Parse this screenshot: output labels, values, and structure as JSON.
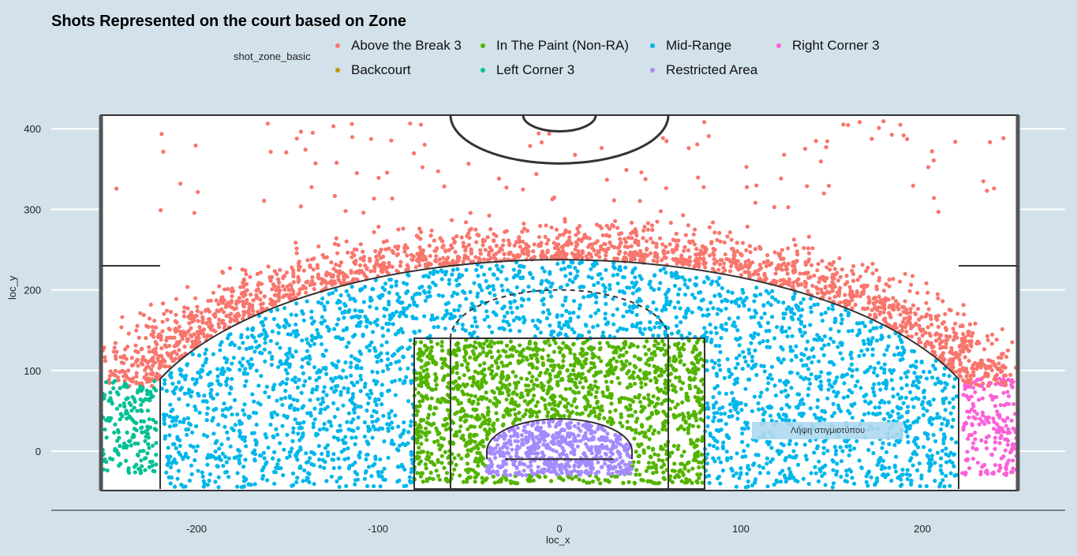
{
  "chart_data": {
    "type": "scatter",
    "title": "Shots Represented on the court based on Zone",
    "xlabel": "loc_x",
    "ylabel": "loc_y",
    "xlim": [
      -280,
      280
    ],
    "ylim": [
      -70,
      420
    ],
    "x_ticks": [
      -200,
      -100,
      0,
      100,
      200
    ],
    "y_ticks": [
      0,
      100,
      200,
      300,
      400
    ],
    "legend": {
      "title": "shot_zone_basic",
      "placement": "top",
      "entries": [
        {
          "name": "Above the Break 3",
          "color": "#f8766d"
        },
        {
          "name": "In The Paint (Non-RA)",
          "color": "#53b400"
        },
        {
          "name": "Mid-Range",
          "color": "#00b6eb"
        },
        {
          "name": "Right Corner 3",
          "color": "#fb61d7"
        },
        {
          "name": "Backcourt",
          "color": "#c49a00"
        },
        {
          "name": "Left Corner 3",
          "color": "#00c094"
        },
        {
          "name": "Restricted Area",
          "color": "#a58aff"
        }
      ]
    },
    "series": [
      {
        "name": "Above the Break 3",
        "color": "#f8766d",
        "region": {
          "shape": "arc_band",
          "r_min": 237,
          "r_max": 290,
          "outliers_to_y": 410,
          "x_range": [
            -250,
            250
          ]
        }
      },
      {
        "name": "Mid-Range",
        "color": "#00b6eb",
        "region": {
          "shape": "inside_arc_outside_paint",
          "x_range": [
            -220,
            220
          ],
          "y_range": [
            -45,
            235
          ]
        }
      },
      {
        "name": "In The Paint (Non-RA)",
        "color": "#53b400",
        "region": {
          "shape": "rect",
          "x_range": [
            -80,
            80
          ],
          "y_range": [
            -40,
            138
          ]
        }
      },
      {
        "name": "Restricted Area",
        "color": "#a58aff",
        "region": {
          "shape": "half_disc",
          "radius": 40,
          "y_range": [
            -30,
            40
          ]
        }
      },
      {
        "name": "Left Corner 3",
        "color": "#00c094",
        "region": {
          "shape": "rect",
          "x_range": [
            -250,
            -220
          ],
          "y_range": [
            -30,
            88
          ]
        }
      },
      {
        "name": "Right Corner 3",
        "color": "#fb61d7",
        "region": {
          "shape": "rect",
          "x_range": [
            220,
            250
          ],
          "y_range": [
            -30,
            90
          ]
        }
      },
      {
        "name": "Backcourt",
        "color": "#c49a00",
        "region": {
          "shape": "none"
        }
      }
    ],
    "grid": true,
    "background": "#d3e1ea"
  },
  "overlay": {
    "snapshot_button": "Λήψη στιγμιοτύπου"
  }
}
